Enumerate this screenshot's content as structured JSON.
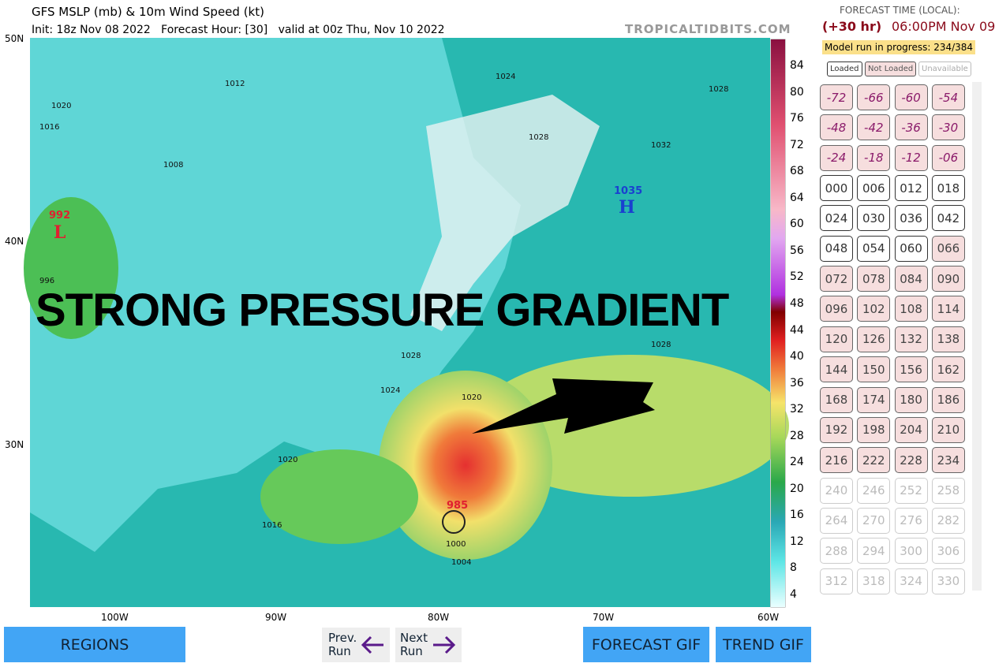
{
  "header": {
    "title": "GFS MSLP (mb) & 10m Wind Speed (kt)",
    "subtitle": "Init: 18z Nov 08 2022   Forecast Hour: [30]   valid at 00z Thu, Nov 10 2022",
    "watermark": "TROPICALTIDBITS.COM"
  },
  "map": {
    "lat_labels": [
      "50N",
      "40N",
      "30N"
    ],
    "lon_labels": [
      "100W",
      "90W",
      "80W",
      "70W",
      "60W"
    ],
    "annotation": "STRONG PRESSURE GRADIENT",
    "low_west": {
      "pressure": "992",
      "symbol": "L"
    },
    "high": {
      "pressure": "1035",
      "symbol": "H"
    },
    "low_storm": {
      "pressure": "985"
    },
    "isobar_labels": [
      "1012",
      "1024",
      "1028",
      "1020",
      "1016",
      "1008",
      "1028",
      "1032",
      "996",
      "1028",
      "1028",
      "1024",
      "1020",
      "1020",
      "1016",
      "1000",
      "1004"
    ]
  },
  "colorbar": {
    "labels": [
      "84",
      "80",
      "76",
      "72",
      "68",
      "64",
      "60",
      "56",
      "52",
      "48",
      "44",
      "40",
      "36",
      "32",
      "28",
      "24",
      "20",
      "16",
      "12",
      "8",
      "4"
    ]
  },
  "sidebar": {
    "heading": "FORECAST TIME (LOCAL):",
    "offset": "(+30 hr)",
    "time": "06:00PM Nov 09",
    "progress": "Model run in progress: 234/384",
    "legend": [
      "Loaded",
      "Not Loaded",
      "Unavailable"
    ],
    "hours": {
      "past": [
        "-72",
        "-66",
        "-60",
        "-54",
        "-48",
        "-42",
        "-36",
        "-30",
        "-24",
        "-18",
        "-12",
        "-06"
      ],
      "loaded": [
        "000",
        "006",
        "012",
        "018",
        "024",
        "030",
        "036",
        "042",
        "048",
        "054",
        "060"
      ],
      "not_loaded": [
        "066",
        "072",
        "078",
        "084",
        "090",
        "096",
        "102",
        "108",
        "114",
        "120",
        "126",
        "132",
        "138",
        "144",
        "150",
        "156",
        "162",
        "168",
        "174",
        "180",
        "186",
        "192",
        "198",
        "204",
        "210",
        "216",
        "222",
        "228",
        "234"
      ],
      "unavailable": [
        "240",
        "246",
        "252",
        "258",
        "264",
        "270",
        "276",
        "282",
        "288",
        "294",
        "300",
        "306",
        "312",
        "318",
        "324",
        "330"
      ]
    }
  },
  "footer": {
    "regions": "REGIONS",
    "prev": [
      "Prev.",
      "Run"
    ],
    "next": [
      "Next",
      "Run"
    ],
    "forecast_gif": "FORECAST GIF",
    "trend_gif": "TREND GIF"
  }
}
